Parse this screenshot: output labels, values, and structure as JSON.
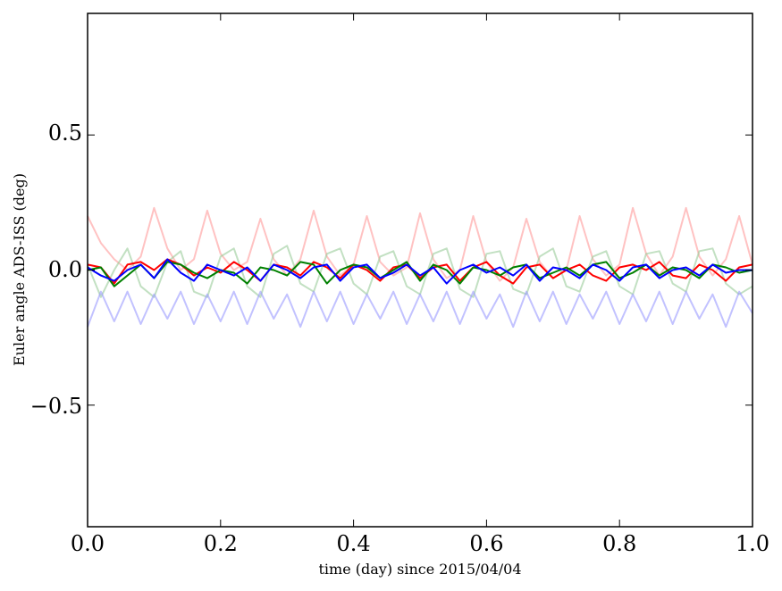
{
  "chart_data": {
    "type": "line",
    "xlabel": "time (day) since 2015/04/04",
    "ylabel": "Euler angle ADS-ISS (deg)",
    "xlim": [
      0.0,
      1.0
    ],
    "ylim": [
      -0.95,
      0.95
    ],
    "xticks": [
      0.0,
      0.2,
      0.4,
      0.6,
      0.8,
      1.0
    ],
    "xtick_labels": [
      "0.0",
      "0.2",
      "0.4",
      "0.6",
      "0.8",
      "1.0"
    ],
    "yticks": [
      -0.5,
      0.0,
      0.5
    ],
    "ytick_labels": [
      "−0.5",
      "0.0",
      "0.5"
    ],
    "grid": false,
    "legend": "none",
    "series_x": [
      0.0,
      0.02,
      0.04,
      0.06,
      0.08,
      0.1,
      0.12,
      0.14,
      0.16,
      0.18,
      0.2,
      0.22,
      0.24,
      0.26,
      0.28,
      0.3,
      0.32,
      0.34,
      0.36,
      0.38,
      0.4,
      0.42,
      0.44,
      0.46,
      0.48,
      0.5,
      0.52,
      0.54,
      0.56,
      0.58,
      0.6,
      0.62,
      0.64,
      0.66,
      0.68,
      0.7,
      0.72,
      0.74,
      0.76,
      0.78,
      0.8,
      0.82,
      0.84,
      0.86,
      0.88,
      0.9,
      0.92,
      0.94,
      0.96,
      0.98,
      1.0
    ],
    "series": [
      {
        "color": "#ff9999",
        "alpha": 0.6,
        "values": [
          0.2,
          0.1,
          0.04,
          0.0,
          0.05,
          0.23,
          0.08,
          0.0,
          0.04,
          0.22,
          0.06,
          0.0,
          0.03,
          0.19,
          0.04,
          -0.02,
          0.04,
          0.22,
          0.05,
          -0.02,
          0.02,
          0.2,
          0.03,
          -0.02,
          0.01,
          0.21,
          0.04,
          -0.03,
          0.0,
          0.2,
          0.03,
          -0.04,
          0.01,
          0.19,
          0.03,
          -0.03,
          0.0,
          0.2,
          0.04,
          -0.02,
          0.02,
          0.23,
          0.06,
          -0.02,
          0.05,
          0.23,
          0.05,
          -0.02,
          0.04,
          0.2,
          0.02
        ]
      },
      {
        "color": "#99cc99",
        "alpha": 0.6,
        "values": [
          0.02,
          -0.1,
          0.0,
          0.08,
          -0.06,
          -0.1,
          0.03,
          0.07,
          -0.08,
          -0.1,
          0.05,
          0.08,
          -0.06,
          -0.1,
          0.06,
          0.09,
          -0.05,
          -0.08,
          0.06,
          0.08,
          -0.05,
          -0.09,
          0.05,
          0.07,
          -0.06,
          -0.09,
          0.06,
          0.08,
          -0.07,
          -0.1,
          0.06,
          0.07,
          -0.07,
          -0.09,
          0.05,
          0.08,
          -0.06,
          -0.08,
          0.05,
          0.07,
          -0.06,
          -0.09,
          0.06,
          0.07,
          -0.05,
          -0.08,
          0.07,
          0.08,
          -0.05,
          -0.09,
          -0.06
        ]
      },
      {
        "color": "#9999ff",
        "alpha": 0.6,
        "values": [
          -0.21,
          -0.08,
          -0.19,
          -0.08,
          -0.2,
          -0.09,
          -0.18,
          -0.08,
          -0.2,
          -0.09,
          -0.19,
          -0.08,
          -0.2,
          -0.08,
          -0.18,
          -0.09,
          -0.21,
          -0.08,
          -0.19,
          -0.08,
          -0.2,
          -0.09,
          -0.18,
          -0.08,
          -0.2,
          -0.09,
          -0.19,
          -0.08,
          -0.2,
          -0.08,
          -0.18,
          -0.09,
          -0.21,
          -0.08,
          -0.19,
          -0.08,
          -0.2,
          -0.09,
          -0.18,
          -0.08,
          -0.2,
          -0.09,
          -0.19,
          -0.08,
          -0.2,
          -0.08,
          -0.18,
          -0.09,
          -0.21,
          -0.08,
          -0.16
        ]
      },
      {
        "color": "#ff0000",
        "alpha": 1.0,
        "values": [
          0.02,
          0.01,
          -0.05,
          0.02,
          0.03,
          0.0,
          0.04,
          0.02,
          -0.02,
          0.01,
          -0.01,
          0.03,
          0.0,
          -0.04,
          0.02,
          0.01,
          -0.02,
          0.03,
          0.01,
          -0.03,
          0.02,
          0.0,
          -0.04,
          0.01,
          0.02,
          -0.03,
          0.01,
          0.02,
          -0.04,
          0.01,
          0.03,
          -0.02,
          -0.05,
          0.01,
          0.02,
          -0.03,
          0.0,
          0.02,
          -0.02,
          -0.04,
          0.01,
          0.02,
          0.0,
          0.03,
          -0.02,
          -0.03,
          0.02,
          0.0,
          -0.04,
          0.01,
          0.02
        ]
      },
      {
        "color": "#008000",
        "alpha": 1.0,
        "values": [
          0.0,
          0.01,
          -0.06,
          -0.02,
          0.02,
          -0.03,
          0.03,
          0.02,
          -0.01,
          -0.03,
          0.0,
          -0.01,
          -0.05,
          0.01,
          0.0,
          -0.02,
          0.03,
          0.02,
          -0.05,
          0.0,
          0.02,
          0.01,
          -0.03,
          0.0,
          0.03,
          -0.04,
          0.02,
          0.0,
          -0.05,
          0.01,
          0.0,
          -0.02,
          0.01,
          0.02,
          -0.03,
          -0.01,
          0.01,
          -0.02,
          0.02,
          0.03,
          -0.03,
          -0.01,
          0.02,
          -0.02,
          0.01,
          0.0,
          -0.03,
          0.02,
          0.01,
          -0.01,
          0.0
        ]
      },
      {
        "color": "#0000ff",
        "alpha": 1.0,
        "values": [
          0.01,
          -0.02,
          -0.04,
          0.0,
          0.02,
          -0.03,
          0.04,
          -0.01,
          -0.04,
          0.02,
          0.0,
          -0.02,
          0.01,
          -0.04,
          0.02,
          0.0,
          -0.03,
          0.01,
          0.02,
          -0.04,
          0.01,
          0.02,
          -0.03,
          -0.01,
          0.02,
          -0.02,
          0.01,
          -0.05,
          0.0,
          0.02,
          -0.01,
          0.01,
          -0.02,
          0.02,
          -0.04,
          0.01,
          0.0,
          -0.03,
          0.02,
          0.0,
          -0.04,
          0.01,
          0.02,
          -0.03,
          0.0,
          0.01,
          -0.02,
          0.02,
          -0.01,
          0.0,
          0.0
        ]
      }
    ]
  }
}
